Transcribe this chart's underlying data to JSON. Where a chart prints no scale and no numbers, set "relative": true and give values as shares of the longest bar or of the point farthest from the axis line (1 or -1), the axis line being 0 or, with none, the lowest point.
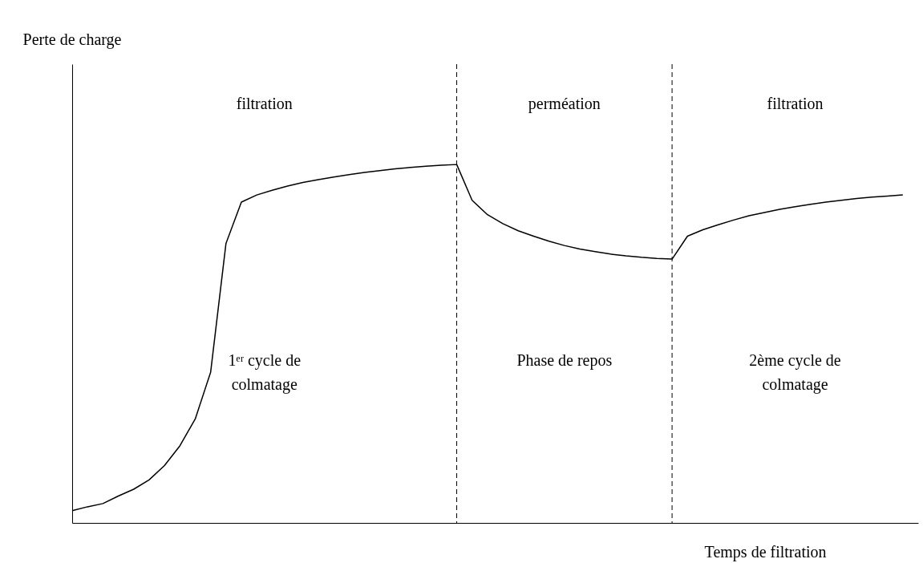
{
  "chart_data": {
    "type": "line",
    "relative": true,
    "xlabel": "Temps de filtration",
    "categories": [
      null,
      null,
      null,
      null,
      null,
      null,
      null,
      null,
      null,
      null,
      null,
      null,
      null,
      null,
      null,
      null,
      null,
      null,
      null,
      null,
      null,
      null,
      null,
      null,
      null,
      null,
      null,
      null,
      null,
      null,
      null,
      null,
      null,
      null,
      null,
      null,
      null,
      null,
      null,
      null,
      null,
      null,
      null,
      null,
      null,
      null,
      null,
      null,
      null,
      null,
      null,
      null,
      null,
      null,
      null,
      null
    ],
    "series": [
      {
        "color": "#000000",
        "values": [
          0.034,
          0.045,
          0.054,
          0.075,
          0.094,
          0.12,
          0.16,
          0.215,
          0.29,
          0.42,
          0.78,
          0.895,
          0.915,
          0.928,
          0.94,
          0.95,
          0.958,
          0.965,
          0.972,
          0.978,
          0.983,
          0.988,
          0.992,
          0.995,
          0.998,
          1.0,
          0.9,
          0.86,
          0.835,
          0.815,
          0.8,
          0.786,
          0.774,
          0.764,
          0.757,
          0.75,
          0.745,
          0.741,
          0.738,
          0.736,
          0.8,
          0.818,
          0.832,
          0.845,
          0.857,
          0.866,
          0.875,
          0.882,
          0.889,
          0.895,
          0.9,
          0.905,
          0.909,
          0.912,
          0.915,
          null
        ]
      }
    ],
    "tick_labels": false,
    "grid": false,
    "marker": "none",
    "line_style": "solid",
    "annotations": [
      "filtration",
      "perméation",
      "filtration",
      "1ᵉʳ cycle de colmatage",
      "Phase de repos",
      "2ème cycle de colmatage",
      "Perte de charge"
    ]
  }
}
